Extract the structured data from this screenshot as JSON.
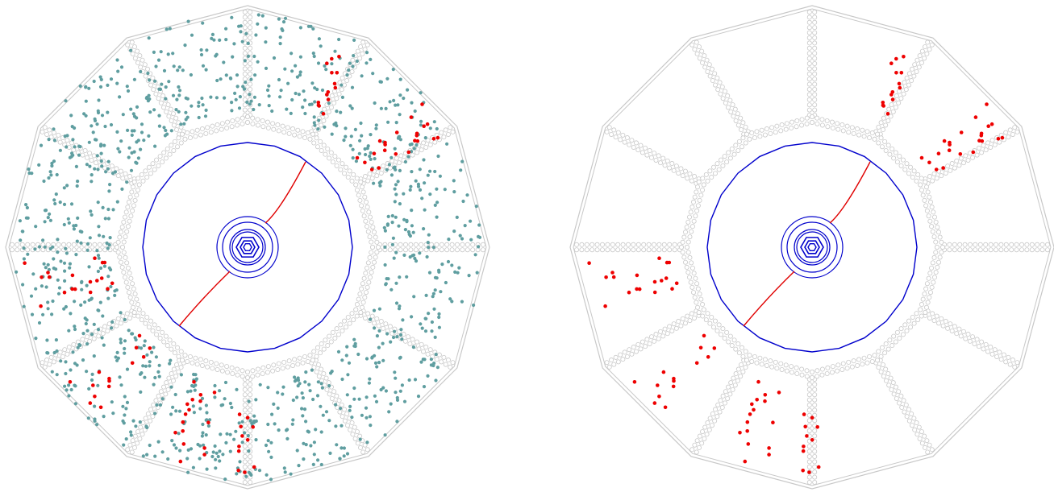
{
  "colors": {
    "background": "#ffffff",
    "chamber_outline": "#c8c8c8",
    "chamber_fill": "#ffffff",
    "inner_detector": "#0000cc",
    "track": "#e00000",
    "signal_hits": "#ee0000",
    "background_hits": "#5f9ea0"
  },
  "panels": [
    {
      "name": "with-background-hits",
      "show_background_hits": true
    },
    {
      "name": "signal-hits-only",
      "show_background_hits": false
    }
  ],
  "geometry": {
    "sectors": 12,
    "background_hit_count": 1100,
    "signal_hit_count": 95
  }
}
